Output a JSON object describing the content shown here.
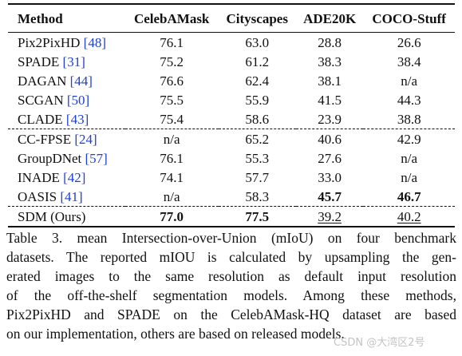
{
  "table": {
    "headers": [
      "Method",
      "CelebAMask",
      "Cityscapes",
      "ADE20K",
      "COCO-Stuff"
    ],
    "rows": [
      {
        "name": "Pix2PixHD",
        "ref": "[48]",
        "celeb": "76.1",
        "city": "63.0",
        "ade": "28.8",
        "coco": "26.6"
      },
      {
        "name": "SPADE",
        "ref": "[31]",
        "celeb": "75.2",
        "city": "61.2",
        "ade": "38.3",
        "coco": "38.4"
      },
      {
        "name": "DAGAN",
        "ref": "[44]",
        "celeb": "76.6",
        "city": "62.4",
        "ade": "38.1",
        "coco": "n/a"
      },
      {
        "name": "SCGAN",
        "ref": "[50]",
        "celeb": "75.5",
        "city": "55.9",
        "ade": "41.5",
        "coco": "44.3"
      },
      {
        "name": "CLADE",
        "ref": "[43]",
        "celeb": "75.4",
        "city": "58.6",
        "ade": "23.9",
        "coco": "38.8"
      },
      {
        "name": "CC-FPSE",
        "ref": "[24]",
        "celeb": "n/a",
        "city": "65.2",
        "ade": "40.6",
        "coco": "42.9"
      },
      {
        "name": "GroupDNet",
        "ref": "[57]",
        "celeb": "76.1",
        "city": "55.3",
        "ade": "27.6",
        "coco": "n/a"
      },
      {
        "name": "INADE",
        "ref": "[42]",
        "celeb": "74.1",
        "city": "57.7",
        "ade": "33.0",
        "coco": "n/a"
      },
      {
        "name": "OASIS",
        "ref": "[41]",
        "celeb": "n/a",
        "city": "58.3",
        "ade": "45.7",
        "coco": "46.7"
      },
      {
        "name": "SDM (Ours)",
        "ref": "",
        "celeb": "77.0",
        "city": "77.5",
        "ade": "39.2",
        "coco": "40.2"
      }
    ],
    "emphasis": {
      "bold": [
        "8.ade",
        "8.coco",
        "9.celeb",
        "9.city"
      ],
      "underline": [
        "9.ade",
        "9.coco"
      ]
    }
  },
  "caption": {
    "lines": [
      "Table 3. mean Intersection-over-Union (mIoU) on four benchmark",
      "datasets. The reported mIOU is calculated by upsampling the gen-",
      "erated images to the same resolution as default input resolution",
      "of the off-the-shelf segmentation models. Among these methods,",
      "Pix2PixHD and SPADE on the CelebAMask-HQ dataset are based",
      "on our implementation, others are based on released models."
    ]
  },
  "watermark": "CSDN @大湾区2号"
}
